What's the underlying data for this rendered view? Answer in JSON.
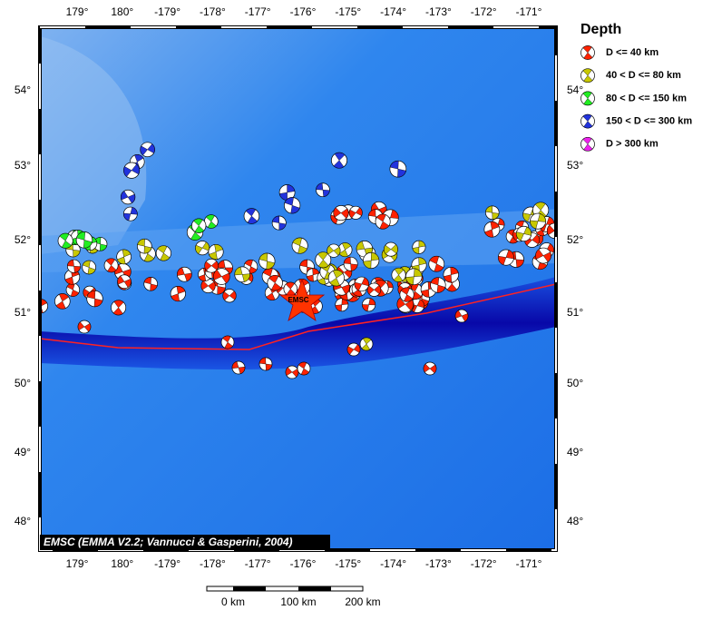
{
  "map": {
    "lon_labels": [
      "179°",
      "180°",
      "-179°",
      "-178°",
      "-177°",
      "-176°",
      "-175°",
      "-174°",
      "-173°",
      "-172°",
      "-171°"
    ],
    "lat_labels": [
      "54°",
      "53°",
      "52°",
      "51°",
      "50°",
      "49°",
      "48°"
    ],
    "star_label": "EMSC",
    "credit": "EMSC (EMMA V2.2; Vannucci & Gasperini, 2004)",
    "scale_labels": [
      "0 km",
      "100 km",
      "200 km"
    ]
  },
  "legend": {
    "title": "Depth",
    "items": [
      {
        "label": "D <= 40 km",
        "color": "#ff2200"
      },
      {
        "label": "40 < D <= 80 km",
        "color": "#c8c800"
      },
      {
        "label": "80 < D <= 150 km",
        "color": "#22ee22"
      },
      {
        "label": "150 < D <= 300 km",
        "color": "#2233dd"
      },
      {
        "label": "D > 300 km",
        "color": "#ee22ee"
      }
    ]
  }
}
